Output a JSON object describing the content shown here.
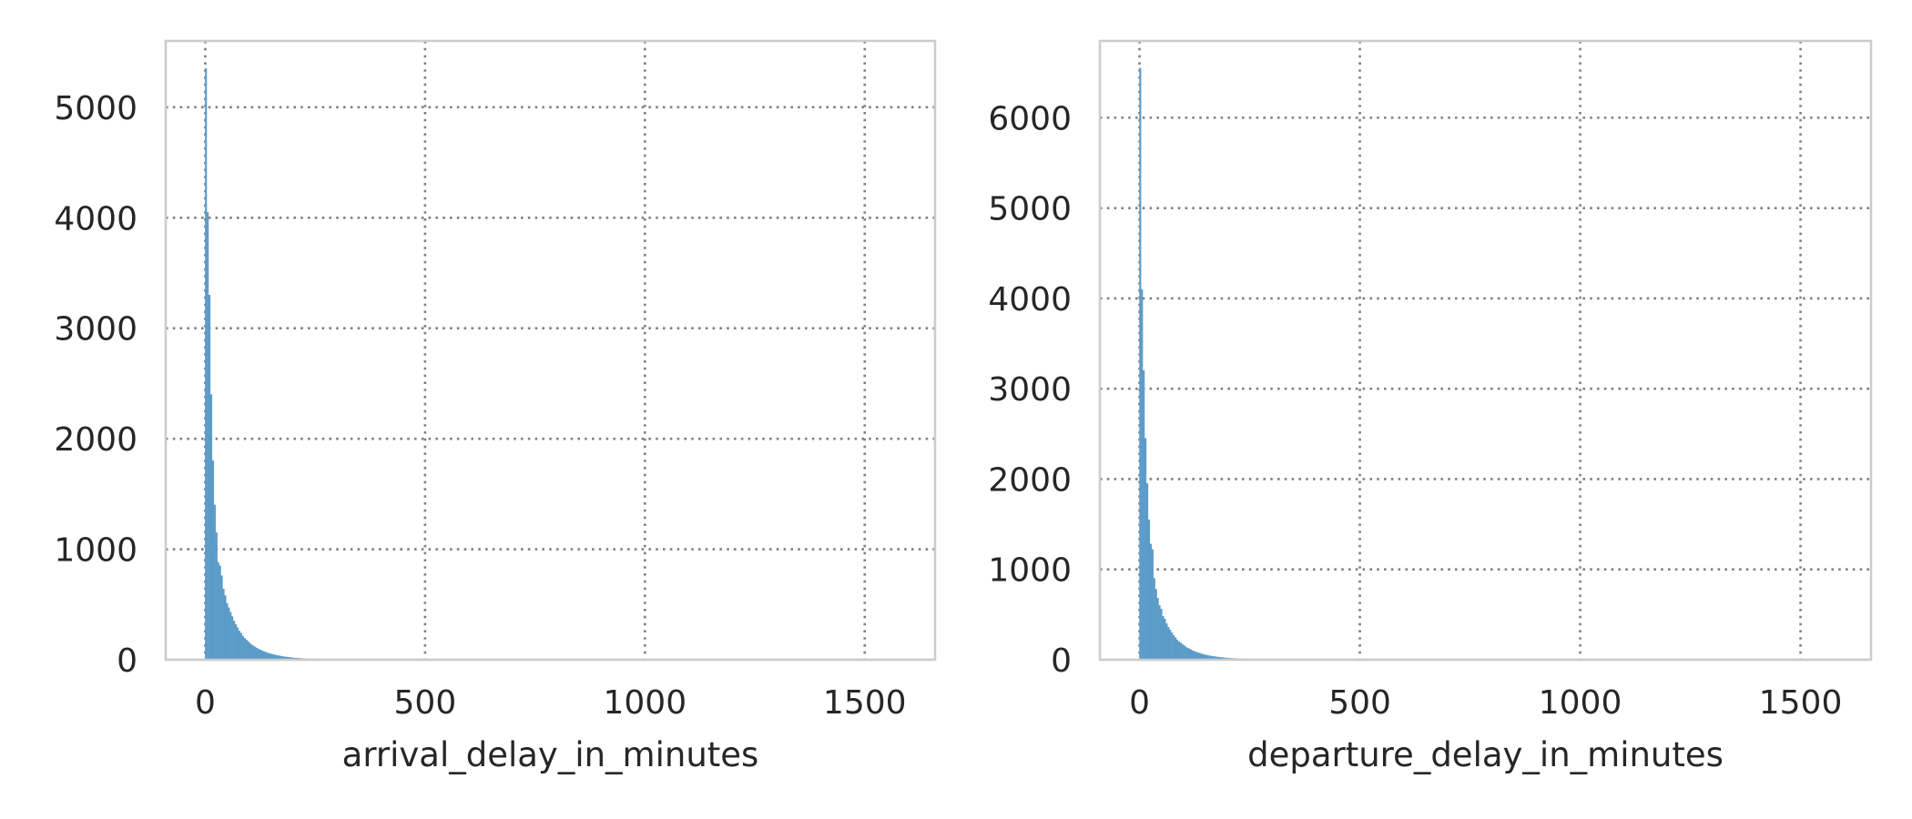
{
  "chart_data": [
    {
      "type": "bar",
      "xlabel": "arrival_delay_in_minutes",
      "ylabel": "",
      "xlim": [
        -90,
        1660
      ],
      "ylim": [
        0,
        5600
      ],
      "xticks": [
        0,
        500,
        1000,
        1500
      ],
      "yticks": [
        0,
        1000,
        2000,
        3000,
        4000,
        5000
      ],
      "grid": true,
      "bar_color": "#5b9bc8",
      "bin_width": 4,
      "bins_start": [
        0,
        4,
        8,
        12,
        16,
        20,
        24,
        28,
        32,
        36,
        40,
        44,
        48,
        52,
        56,
        60,
        64,
        68,
        72,
        76,
        80,
        84,
        88,
        92,
        96,
        100,
        104,
        108,
        112,
        116,
        120,
        124,
        128,
        132,
        136,
        140,
        144,
        148,
        152,
        156,
        160,
        164,
        168,
        172,
        176,
        180,
        184,
        188,
        192,
        196,
        200,
        204,
        208,
        212,
        216,
        220,
        224,
        228,
        232,
        236,
        240,
        244,
        248,
        252,
        256,
        260,
        264,
        268,
        272,
        276,
        280,
        284,
        288,
        292,
        296,
        300,
        310,
        320,
        330,
        340,
        350,
        360,
        380,
        400,
        420,
        440,
        460,
        480,
        500,
        550,
        600
      ],
      "counts": [
        5350,
        4050,
        3300,
        2400,
        1800,
        1400,
        1150,
        880,
        850,
        760,
        640,
        580,
        510,
        470,
        430,
        390,
        350,
        320,
        290,
        260,
        240,
        215,
        195,
        180,
        165,
        150,
        135,
        125,
        115,
        105,
        95,
        88,
        80,
        74,
        68,
        62,
        56,
        52,
        48,
        44,
        40,
        37,
        34,
        31,
        28,
        26,
        24,
        22,
        20,
        18,
        16,
        15,
        14,
        13,
        12,
        11,
        10,
        9,
        8,
        8,
        7,
        7,
        6,
        6,
        5,
        5,
        5,
        4,
        4,
        4,
        3,
        3,
        3,
        3,
        3,
        2,
        2,
        2,
        2,
        2,
        1,
        1,
        1,
        1,
        1,
        1,
        1,
        1,
        1,
        1,
        1
      ]
    },
    {
      "type": "bar",
      "xlabel": "departure_delay_in_minutes",
      "ylabel": "",
      "xlim": [
        -90,
        1660
      ],
      "ylim": [
        0,
        6850
      ],
      "xticks": [
        0,
        500,
        1000,
        1500
      ],
      "yticks": [
        0,
        1000,
        2000,
        3000,
        4000,
        5000,
        6000
      ],
      "grid": true,
      "bar_color": "#5b9bc8",
      "bin_width": 4,
      "bins_start": [
        0,
        4,
        8,
        12,
        16,
        20,
        24,
        28,
        32,
        36,
        40,
        44,
        48,
        52,
        56,
        60,
        64,
        68,
        72,
        76,
        80,
        84,
        88,
        92,
        96,
        100,
        104,
        108,
        112,
        116,
        120,
        124,
        128,
        132,
        136,
        140,
        144,
        148,
        152,
        156,
        160,
        164,
        168,
        172,
        176,
        180,
        184,
        188,
        192,
        196,
        200,
        204,
        208,
        212,
        216,
        220,
        224,
        228,
        232,
        236,
        240,
        244,
        248,
        252,
        256,
        260,
        264,
        268,
        272,
        276,
        280,
        284,
        288,
        292,
        296,
        300,
        310,
        320,
        330,
        340,
        350,
        360,
        380,
        400,
        420,
        440,
        460,
        480,
        500,
        550,
        600
      ],
      "counts": [
        6550,
        4100,
        3200,
        2450,
        1950,
        1550,
        1280,
        1220,
        900,
        780,
        680,
        600,
        560,
        480,
        450,
        400,
        360,
        330,
        300,
        270,
        245,
        220,
        200,
        185,
        170,
        155,
        140,
        128,
        118,
        108,
        98,
        90,
        82,
        76,
        70,
        64,
        58,
        53,
        49,
        45,
        41,
        38,
        35,
        32,
        29,
        27,
        25,
        23,
        21,
        19,
        17,
        16,
        15,
        14,
        13,
        12,
        11,
        10,
        9,
        8,
        8,
        7,
        7,
        6,
        6,
        5,
        5,
        4,
        4,
        4,
        3,
        3,
        3,
        3,
        3,
        2,
        2,
        2,
        2,
        2,
        1,
        1,
        1,
        1,
        1,
        1,
        1,
        1,
        1,
        1,
        1
      ]
    }
  ]
}
